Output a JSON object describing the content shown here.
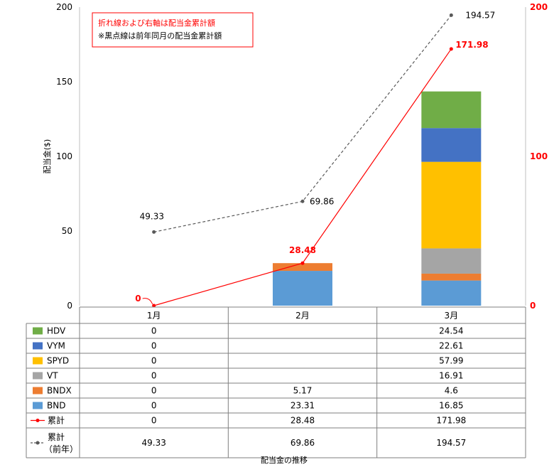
{
  "chart_data": {
    "type": "bar",
    "stacked": true,
    "xlabel": "配当金の推移",
    "ylabel": "配当金($)",
    "categories": [
      "1月",
      "2月",
      "3月"
    ],
    "ylim": [
      0,
      200
    ],
    "yticks": [
      0,
      50,
      100,
      150,
      200
    ],
    "y2lim": [
      0,
      200
    ],
    "y2ticks": [
      0,
      100,
      200
    ],
    "grid": false,
    "notes": [
      "折れ線および右軸は配当金累計額",
      "※黒点線は前年同月の配当金累計額"
    ],
    "series": [
      {
        "name": "BND",
        "color": "#5b9bd5",
        "values": [
          0,
          23.31,
          16.85
        ],
        "labels": [
          "0",
          "23.31",
          "16.85"
        ]
      },
      {
        "name": "BNDX",
        "color": "#ed7d31",
        "values": [
          0,
          5.17,
          4.6
        ],
        "labels": [
          "0",
          "5.17",
          "4.6"
        ]
      },
      {
        "name": "VT",
        "color": "#a5a5a5",
        "values": [
          0,
          0,
          16.91
        ],
        "labels": [
          "0",
          "",
          "16.91"
        ]
      },
      {
        "name": "SPYD",
        "color": "#ffc000",
        "values": [
          0,
          0,
          57.99
        ],
        "labels": [
          "0",
          "",
          "57.99"
        ]
      },
      {
        "name": "VYM",
        "color": "#4472c4",
        "values": [
          0,
          0,
          22.61
        ],
        "labels": [
          "0",
          "",
          "22.61"
        ]
      },
      {
        "name": "HDV",
        "color": "#70ad47",
        "values": [
          0,
          0,
          24.54
        ],
        "labels": [
          "0",
          "",
          "24.54"
        ]
      }
    ],
    "lines": [
      {
        "name": "累計",
        "color": "#ff0000",
        "dashed": false,
        "axis": "right",
        "values": [
          0,
          28.48,
          171.98
        ],
        "labels": [
          "0",
          "28.48",
          "171.98"
        ]
      },
      {
        "name_lines": [
          "累計",
          "（前年）"
        ],
        "color": "#595959",
        "dashed": true,
        "axis": "right",
        "values": [
          49.33,
          69.86,
          194.57
        ],
        "labels": [
          "49.33",
          "69.86",
          "194.57"
        ]
      }
    ]
  }
}
